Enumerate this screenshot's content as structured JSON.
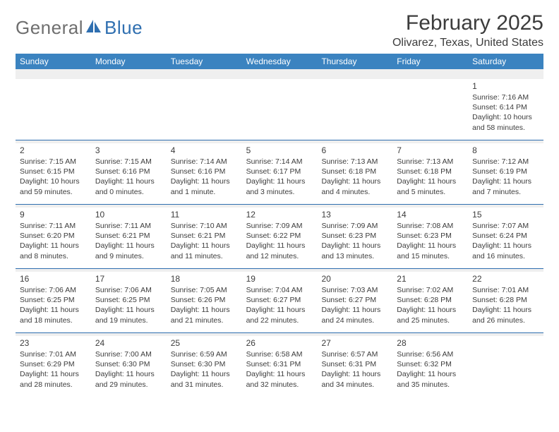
{
  "logo": {
    "text1": "General",
    "text2": "Blue",
    "color1": "#6f6f6f",
    "color2": "#2f6fb0",
    "icon_color": "#2f6fb0"
  },
  "title": "February 2025",
  "location": "Olivarez, Texas, United States",
  "colors": {
    "header_bg": "#3b83c0",
    "header_text": "#ffffff",
    "divider": "#2f6fb0",
    "alt_bg": "#efefef",
    "text": "#3c3c3c",
    "page_bg": "#ffffff"
  },
  "day_headers": [
    "Sunday",
    "Monday",
    "Tuesday",
    "Wednesday",
    "Thursday",
    "Friday",
    "Saturday"
  ],
  "first_weekday": 6,
  "days": [
    {
      "n": 1,
      "sunrise": "7:16 AM",
      "sunset": "6:14 PM",
      "dl1": "Daylight: 10 hours",
      "dl2": "and 58 minutes."
    },
    {
      "n": 2,
      "sunrise": "7:15 AM",
      "sunset": "6:15 PM",
      "dl1": "Daylight: 10 hours",
      "dl2": "and 59 minutes."
    },
    {
      "n": 3,
      "sunrise": "7:15 AM",
      "sunset": "6:16 PM",
      "dl1": "Daylight: 11 hours",
      "dl2": "and 0 minutes."
    },
    {
      "n": 4,
      "sunrise": "7:14 AM",
      "sunset": "6:16 PM",
      "dl1": "Daylight: 11 hours",
      "dl2": "and 1 minute."
    },
    {
      "n": 5,
      "sunrise": "7:14 AM",
      "sunset": "6:17 PM",
      "dl1": "Daylight: 11 hours",
      "dl2": "and 3 minutes."
    },
    {
      "n": 6,
      "sunrise": "7:13 AM",
      "sunset": "6:18 PM",
      "dl1": "Daylight: 11 hours",
      "dl2": "and 4 minutes."
    },
    {
      "n": 7,
      "sunrise": "7:13 AM",
      "sunset": "6:18 PM",
      "dl1": "Daylight: 11 hours",
      "dl2": "and 5 minutes."
    },
    {
      "n": 8,
      "sunrise": "7:12 AM",
      "sunset": "6:19 PM",
      "dl1": "Daylight: 11 hours",
      "dl2": "and 7 minutes."
    },
    {
      "n": 9,
      "sunrise": "7:11 AM",
      "sunset": "6:20 PM",
      "dl1": "Daylight: 11 hours",
      "dl2": "and 8 minutes."
    },
    {
      "n": 10,
      "sunrise": "7:11 AM",
      "sunset": "6:21 PM",
      "dl1": "Daylight: 11 hours",
      "dl2": "and 9 minutes."
    },
    {
      "n": 11,
      "sunrise": "7:10 AM",
      "sunset": "6:21 PM",
      "dl1": "Daylight: 11 hours",
      "dl2": "and 11 minutes."
    },
    {
      "n": 12,
      "sunrise": "7:09 AM",
      "sunset": "6:22 PM",
      "dl1": "Daylight: 11 hours",
      "dl2": "and 12 minutes."
    },
    {
      "n": 13,
      "sunrise": "7:09 AM",
      "sunset": "6:23 PM",
      "dl1": "Daylight: 11 hours",
      "dl2": "and 13 minutes."
    },
    {
      "n": 14,
      "sunrise": "7:08 AM",
      "sunset": "6:23 PM",
      "dl1": "Daylight: 11 hours",
      "dl2": "and 15 minutes."
    },
    {
      "n": 15,
      "sunrise": "7:07 AM",
      "sunset": "6:24 PM",
      "dl1": "Daylight: 11 hours",
      "dl2": "and 16 minutes."
    },
    {
      "n": 16,
      "sunrise": "7:06 AM",
      "sunset": "6:25 PM",
      "dl1": "Daylight: 11 hours",
      "dl2": "and 18 minutes."
    },
    {
      "n": 17,
      "sunrise": "7:06 AM",
      "sunset": "6:25 PM",
      "dl1": "Daylight: 11 hours",
      "dl2": "and 19 minutes."
    },
    {
      "n": 18,
      "sunrise": "7:05 AM",
      "sunset": "6:26 PM",
      "dl1": "Daylight: 11 hours",
      "dl2": "and 21 minutes."
    },
    {
      "n": 19,
      "sunrise": "7:04 AM",
      "sunset": "6:27 PM",
      "dl1": "Daylight: 11 hours",
      "dl2": "and 22 minutes."
    },
    {
      "n": 20,
      "sunrise": "7:03 AM",
      "sunset": "6:27 PM",
      "dl1": "Daylight: 11 hours",
      "dl2": "and 24 minutes."
    },
    {
      "n": 21,
      "sunrise": "7:02 AM",
      "sunset": "6:28 PM",
      "dl1": "Daylight: 11 hours",
      "dl2": "and 25 minutes."
    },
    {
      "n": 22,
      "sunrise": "7:01 AM",
      "sunset": "6:28 PM",
      "dl1": "Daylight: 11 hours",
      "dl2": "and 26 minutes."
    },
    {
      "n": 23,
      "sunrise": "7:01 AM",
      "sunset": "6:29 PM",
      "dl1": "Daylight: 11 hours",
      "dl2": "and 28 minutes."
    },
    {
      "n": 24,
      "sunrise": "7:00 AM",
      "sunset": "6:30 PM",
      "dl1": "Daylight: 11 hours",
      "dl2": "and 29 minutes."
    },
    {
      "n": 25,
      "sunrise": "6:59 AM",
      "sunset": "6:30 PM",
      "dl1": "Daylight: 11 hours",
      "dl2": "and 31 minutes."
    },
    {
      "n": 26,
      "sunrise": "6:58 AM",
      "sunset": "6:31 PM",
      "dl1": "Daylight: 11 hours",
      "dl2": "and 32 minutes."
    },
    {
      "n": 27,
      "sunrise": "6:57 AM",
      "sunset": "6:31 PM",
      "dl1": "Daylight: 11 hours",
      "dl2": "and 34 minutes."
    },
    {
      "n": 28,
      "sunrise": "6:56 AM",
      "sunset": "6:32 PM",
      "dl1": "Daylight: 11 hours",
      "dl2": "and 35 minutes."
    }
  ],
  "labels": {
    "sunrise_prefix": "Sunrise: ",
    "sunset_prefix": "Sunset: "
  }
}
